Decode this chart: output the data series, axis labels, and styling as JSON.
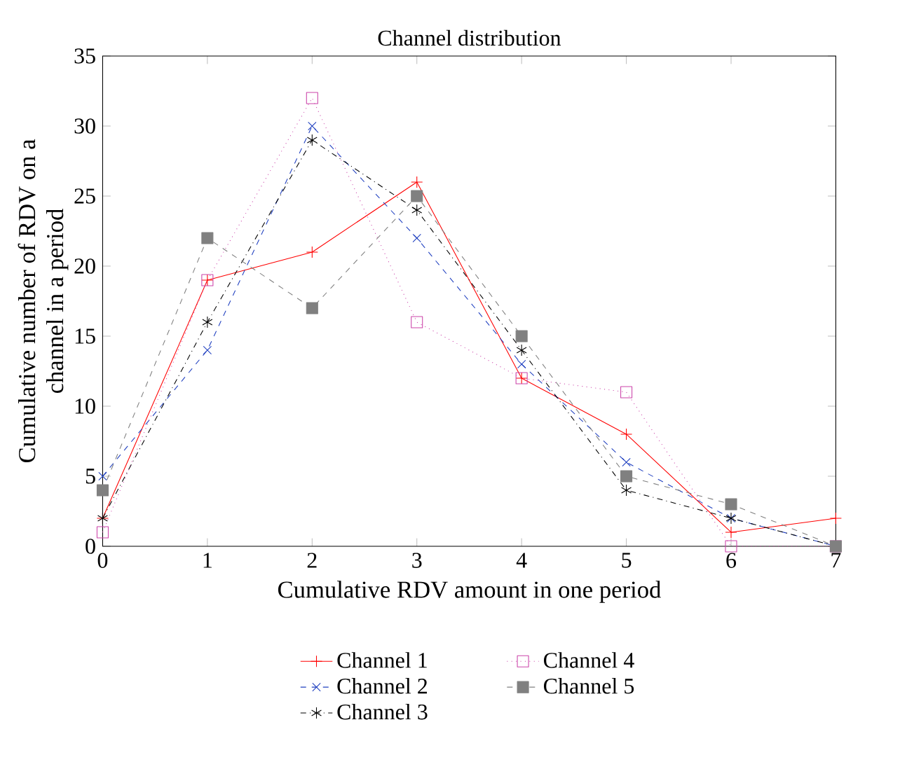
{
  "chart_data": {
    "type": "line",
    "title": "Channel distribution",
    "xlabel": "Cumulative RDV amount in one period",
    "ylabel": "Cumulative number of RDV on a channel in a period",
    "categories": [
      "0",
      "1",
      "2",
      "3",
      "4",
      "5",
      "6",
      "7"
    ],
    "ylim": [
      0,
      35
    ],
    "yticks": [
      0,
      5,
      10,
      15,
      20,
      25,
      30,
      35
    ],
    "legend": "bottom",
    "grid": false,
    "series": [
      {
        "name": "Channel 1",
        "color": "#ff0000",
        "marker": "cross",
        "line_style": "solid",
        "values": [
          2,
          19,
          21,
          26,
          12,
          8,
          1,
          2
        ]
      },
      {
        "name": "Channel 2",
        "color": "#2040c0",
        "marker": "cross",
        "line_style": "dashed",
        "values": [
          5,
          14,
          30,
          22,
          13,
          6,
          2,
          0
        ]
      },
      {
        "name": "Channel 3",
        "color": "#000000",
        "marker": "cross",
        "line_style": "dashdot",
        "values": [
          2,
          16,
          29,
          24,
          14,
          4,
          2,
          0
        ]
      },
      {
        "name": "Channel 4",
        "color": "#cc44aa",
        "marker": "square",
        "line_style": "dotted",
        "values": [
          1,
          19,
          32,
          16,
          12,
          11,
          0,
          0
        ]
      },
      {
        "name": "Channel 5",
        "color": "#808080",
        "marker": "square",
        "line_style": "dashed",
        "values": [
          4,
          22,
          17,
          25,
          15,
          5,
          3,
          0
        ]
      }
    ]
  }
}
